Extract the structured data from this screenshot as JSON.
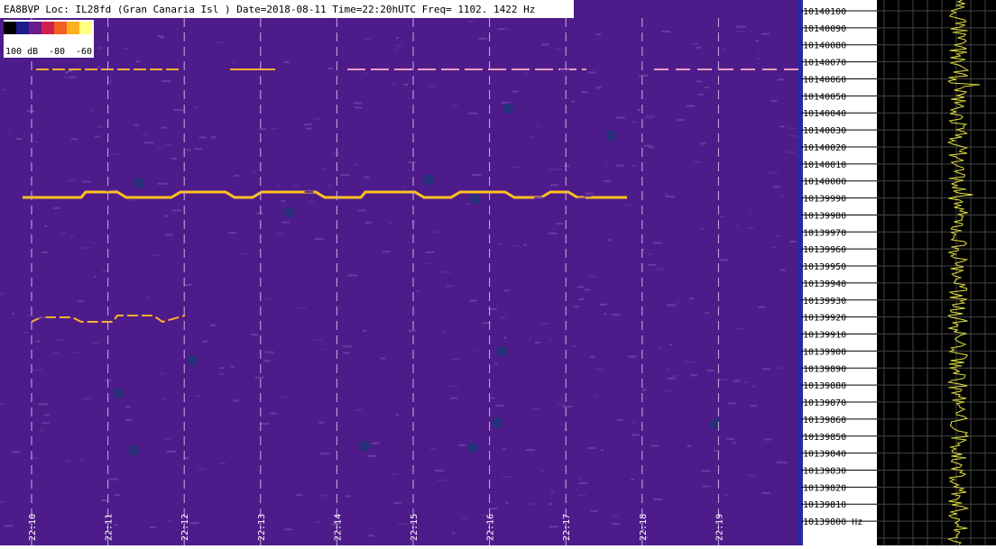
{
  "header": {
    "title": "EA8BVP Loc: IL28fd (Gran Canaria Isl ) Date=2018-08-11 Time=22:20hUTC Freq= 1102. 1422 Hz"
  },
  "scale": {
    "labels": [
      "100 dB",
      "-80",
      "-60"
    ]
  },
  "frequency_labels": [
    "10140100",
    "10140090",
    "10140080",
    "10140070",
    "10140060",
    "10140050",
    "10140040",
    "10140030",
    "10140020",
    "10140010",
    "10140000",
    "10139990",
    "10139980",
    "10139970",
    "10139960",
    "10139950",
    "10139940",
    "10139930",
    "10139920",
    "10139910",
    "10139900",
    "10139890",
    "10139880",
    "10139870",
    "10139860",
    "10139850",
    "10139840",
    "10139830",
    "10139820",
    "10139810",
    "10139800 Hz"
  ],
  "time_labels": [
    "22:10",
    "22:11",
    "22:12",
    "22:13",
    "22:14",
    "22:15",
    "22:16",
    "22:17",
    "22:18",
    "22:19"
  ]
}
